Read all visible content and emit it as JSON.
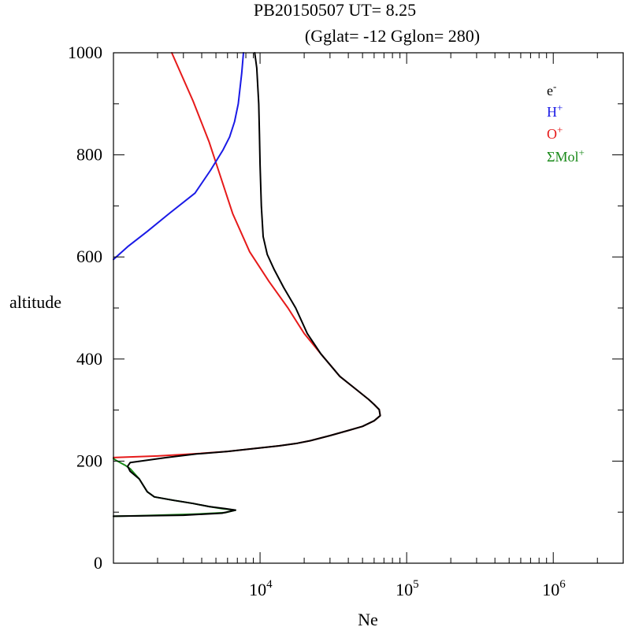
{
  "title_line1": "PB20150507   UT=  8.25",
  "title_line2": "(Gglat= -12   Gglon=  280)",
  "chart_data": {
    "type": "line",
    "xlabel": "Ne",
    "ylabel": "altitude",
    "x_scale": "log",
    "xlim": [
      1000,
      3000000
    ],
    "ylim": [
      0,
      1000
    ],
    "x_ticks": [
      {
        "value": 10000,
        "base": "10",
        "exp": "4"
      },
      {
        "value": 100000,
        "base": "10",
        "exp": "5"
      },
      {
        "value": 1000000,
        "base": "10",
        "exp": "6"
      }
    ],
    "y_ticks": [
      {
        "value": 0,
        "label": "0"
      },
      {
        "value": 200,
        "label": "200"
      },
      {
        "value": 400,
        "label": "400"
      },
      {
        "value": 600,
        "label": "600"
      },
      {
        "value": 800,
        "label": "800"
      },
      {
        "value": 1000,
        "label": "1000"
      }
    ],
    "legend_placement": "top-right",
    "series": [
      {
        "key": "sigma-mol",
        "name": "ΣMol",
        "sup": "+",
        "color": "#1a8a1a",
        "points": [
          [
            1000,
            205
          ],
          [
            1050,
            201
          ],
          [
            1200,
            192
          ],
          [
            1300,
            185
          ],
          [
            1500,
            165
          ],
          [
            1700,
            140
          ],
          [
            1900,
            130
          ],
          [
            2600,
            123
          ],
          [
            3500,
            117
          ],
          [
            4500,
            111
          ],
          [
            5500,
            107
          ],
          [
            6800,
            104
          ],
          [
            5800,
            99
          ],
          [
            3500,
            96
          ],
          [
            1500,
            93
          ],
          [
            1000,
            92
          ]
        ]
      },
      {
        "key": "o-plus",
        "name": "O",
        "sup": "+",
        "color": "#e61a1a",
        "points": [
          [
            1000,
            207
          ],
          [
            2000,
            210
          ],
          [
            3500,
            214
          ],
          [
            6000,
            219
          ],
          [
            10000,
            226
          ],
          [
            13500,
            230
          ],
          [
            18000,
            235
          ],
          [
            22000,
            240
          ],
          [
            30000,
            250
          ],
          [
            40000,
            260
          ],
          [
            50000,
            268
          ],
          [
            60000,
            279
          ],
          [
            66000,
            289
          ],
          [
            65000,
            301
          ],
          [
            60000,
            311
          ],
          [
            55000,
            321
          ],
          [
            45000,
            341
          ],
          [
            35000,
            366
          ],
          [
            26000,
            410
          ],
          [
            20000,
            450
          ],
          [
            15500,
            500
          ],
          [
            11500,
            552
          ],
          [
            8500,
            610
          ],
          [
            6500,
            685
          ],
          [
            5200,
            770
          ],
          [
            4500,
            825
          ],
          [
            3500,
            905
          ],
          [
            2500,
            1000
          ]
        ]
      },
      {
        "key": "electrons",
        "name": "e",
        "sup": "-",
        "color": "#000000",
        "points": [
          [
            1000,
            92
          ],
          [
            3000,
            94
          ],
          [
            5500,
            98
          ],
          [
            6800,
            104
          ],
          [
            5800,
            107
          ],
          [
            4500,
            111
          ],
          [
            3500,
            117
          ],
          [
            2600,
            123
          ],
          [
            1900,
            130
          ],
          [
            1700,
            140
          ],
          [
            1500,
            165
          ],
          [
            1300,
            180
          ],
          [
            1250,
            190
          ],
          [
            1300,
            197
          ],
          [
            2300,
            207
          ],
          [
            3700,
            214
          ],
          [
            6000,
            219
          ],
          [
            10000,
            226
          ],
          [
            13500,
            230
          ],
          [
            18000,
            235
          ],
          [
            22000,
            240
          ],
          [
            30000,
            250
          ],
          [
            40000,
            260
          ],
          [
            50000,
            268
          ],
          [
            60000,
            279
          ],
          [
            66000,
            289
          ],
          [
            65000,
            301
          ],
          [
            60000,
            311
          ],
          [
            55000,
            321
          ],
          [
            45000,
            341
          ],
          [
            35000,
            366
          ],
          [
            26000,
            410
          ],
          [
            21000,
            450
          ],
          [
            17500,
            500
          ],
          [
            14500,
            540
          ],
          [
            12500,
            575
          ],
          [
            11200,
            605
          ],
          [
            10500,
            640
          ],
          [
            10200,
            700
          ],
          [
            10000,
            780
          ],
          [
            9900,
            840
          ],
          [
            9800,
            900
          ],
          [
            9500,
            970
          ],
          [
            9200,
            1000
          ]
        ]
      },
      {
        "key": "h-plus",
        "name": "H",
        "sup": "+",
        "color": "#1a1ae6",
        "points": [
          [
            1000,
            595
          ],
          [
            1250,
            620
          ],
          [
            1700,
            650
          ],
          [
            2400,
            685
          ],
          [
            3600,
            725
          ],
          [
            4600,
            770
          ],
          [
            5600,
            810
          ],
          [
            6200,
            835
          ],
          [
            6700,
            865
          ],
          [
            7100,
            900
          ],
          [
            7500,
            960
          ],
          [
            7700,
            1000
          ]
        ]
      }
    ]
  }
}
